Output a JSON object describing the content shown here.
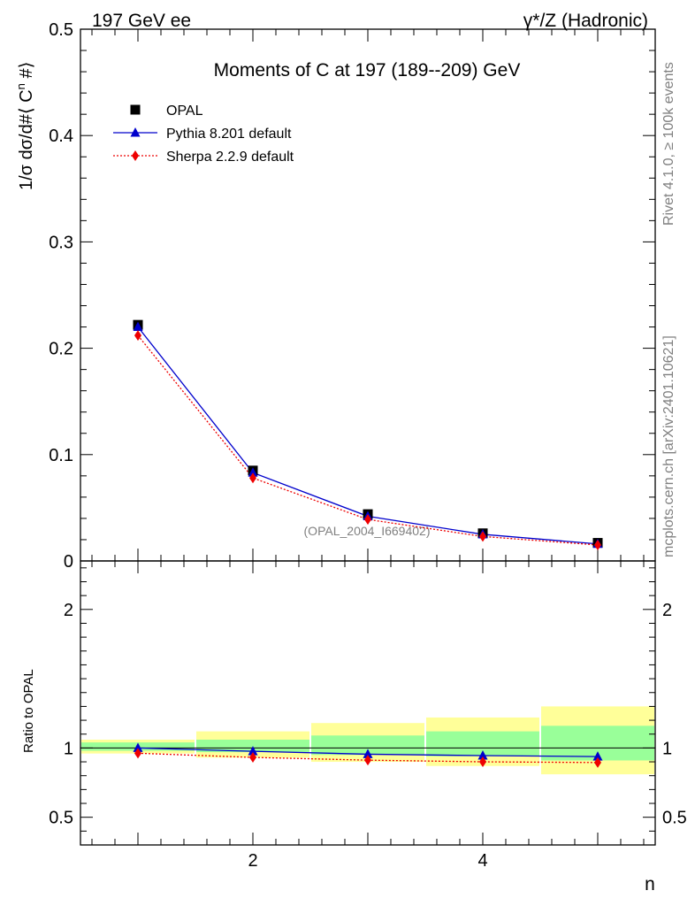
{
  "header": {
    "left": "197 GeV ee",
    "right": "γ*/Z (Hadronic)"
  },
  "side_labels": {
    "rivet": "Rivet 4.1.0, ≥ 100k events",
    "mcplots": "mcplots.cern.ch [arXiv:2401.10621]"
  },
  "chart_data": [
    {
      "type": "scatter",
      "title": "Moments of C at 197 (189--209) GeV",
      "ylabel_prefix": "1/σ  dσ/d#⟨ C",
      "ylabel_sup": "n",
      "ylabel_suffix": " #⟩",
      "watermark": "(OPAL_2004_I669402)",
      "xlim": [
        0.5,
        5.5
      ],
      "ylim": [
        0,
        0.5
      ],
      "yticks": [
        "0",
        "0.1",
        "0.2",
        "0.3",
        "0.4",
        "0.5"
      ],
      "ytick_values": [
        0,
        0.1,
        0.2,
        0.3,
        0.4,
        0.5
      ],
      "x": [
        1,
        2,
        3,
        4,
        5
      ],
      "series": [
        {
          "name": "OPAL",
          "values": [
            0.222,
            0.085,
            0.044,
            0.026,
            0.017
          ],
          "color": "#000000",
          "marker": "square"
        },
        {
          "name": "Pythia 8.201 default",
          "values": [
            0.22,
            0.083,
            0.042,
            0.025,
            0.016
          ],
          "color": "#0000cc",
          "marker": "triangle",
          "line": "solid"
        },
        {
          "name": "Sherpa 2.2.9 default",
          "values": [
            0.212,
            0.078,
            0.039,
            0.023,
            0.015
          ],
          "color": "#ee0000",
          "marker": "diamond",
          "line": "dotted"
        }
      ],
      "legend": "top-left"
    },
    {
      "type": "scatter",
      "ylabel": "Ratio to OPAL",
      "xlabel": "n",
      "xlim": [
        0.5,
        5.5
      ],
      "ylim": [
        0.3,
        2.35
      ],
      "yticks": [
        "0.5",
        "1",
        "2"
      ],
      "ytick_values": [
        0.5,
        1,
        2
      ],
      "xticks": [
        "2",
        "4"
      ],
      "xtick_values": [
        2,
        4
      ],
      "x": [
        1,
        2,
        3,
        4,
        5
      ],
      "band_green": {
        "upper": [
          1.04,
          1.06,
          1.09,
          1.12,
          1.16
        ],
        "lower": [
          0.98,
          0.97,
          0.95,
          0.94,
          0.91
        ]
      },
      "band_yellow": {
        "upper": [
          1.06,
          1.12,
          1.18,
          1.22,
          1.3
        ],
        "lower": [
          0.96,
          0.93,
          0.9,
          0.87,
          0.81
        ]
      },
      "band_colors": {
        "green": "#99ff99",
        "yellow": "#ffff99"
      },
      "series": [
        {
          "name": "Pythia 8.201 default",
          "values": [
            1.0,
            0.976,
            0.955,
            0.945,
            0.938
          ],
          "color": "#0000cc",
          "marker": "triangle",
          "line": "solid"
        },
        {
          "name": "Sherpa 2.2.9 default",
          "values": [
            0.962,
            0.932,
            0.912,
            0.9,
            0.895
          ],
          "color": "#ee0000",
          "marker": "diamond",
          "line": "dotted"
        }
      ]
    }
  ]
}
